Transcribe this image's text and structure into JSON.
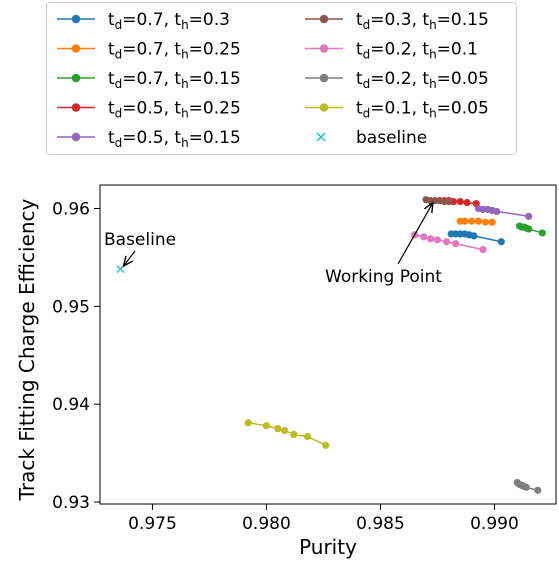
{
  "chart_data": {
    "type": "line",
    "title": "",
    "xlabel": "Purity",
    "ylabel": "Track Fitting Charge Efficiency",
    "xlim": [
      0.9727,
      0.9927
    ],
    "ylim": [
      0.9298,
      0.9624
    ],
    "x_ticks": [
      0.975,
      0.98,
      0.985,
      0.99
    ],
    "x_tick_labels": [
      "0.975",
      "0.980",
      "0.985",
      "0.990"
    ],
    "y_ticks": [
      0.93,
      0.94,
      0.95,
      0.96
    ],
    "y_tick_labels": [
      "0.93",
      "0.94",
      "0.95",
      "0.96"
    ],
    "grid": false,
    "legend_placement": "top, outside plot, two columns",
    "series": [
      {
        "name": "0.7|0.3",
        "td": "0.7",
        "th": "0.3",
        "color": "#1f77b4",
        "x": [
          0.9881,
          0.9883,
          0.9885,
          0.9887,
          0.9889,
          0.9891,
          0.9903
        ],
        "y": [
          0.9574,
          0.9574,
          0.9574,
          0.9574,
          0.9573,
          0.9572,
          0.9566
        ]
      },
      {
        "name": "0.7|0.25",
        "td": "0.7",
        "th": "0.25",
        "color": "#ff7f0e",
        "x": [
          0.9885,
          0.9887,
          0.989,
          0.9893,
          0.9896,
          0.9899
        ],
        "y": [
          0.9587,
          0.9587,
          0.9587,
          0.9587,
          0.9586,
          0.9586
        ]
      },
      {
        "name": "0.7|0.15",
        "td": "0.7",
        "th": "0.15",
        "color": "#2ca02c",
        "x": [
          0.9911,
          0.9912,
          0.9913,
          0.9914,
          0.9915,
          0.9921
        ],
        "y": [
          0.9582,
          0.9581,
          0.9581,
          0.958,
          0.9579,
          0.9575
        ]
      },
      {
        "name": "0.5|0.25",
        "td": "0.5",
        "th": "0.25",
        "color": "#d62728",
        "x": [
          0.9878,
          0.988,
          0.9882,
          0.9885,
          0.9888,
          0.9892
        ],
        "y": [
          0.9608,
          0.9608,
          0.9607,
          0.9607,
          0.9606,
          0.9605
        ]
      },
      {
        "name": "0.5|0.15",
        "td": "0.5",
        "th": "0.15",
        "color": "#9467bd",
        "x": [
          0.9893,
          0.9895,
          0.9897,
          0.9899,
          0.9901,
          0.9915
        ],
        "y": [
          0.96,
          0.9599,
          0.9599,
          0.9598,
          0.9597,
          0.9592
        ]
      },
      {
        "name": "0.3|0.15",
        "td": "0.3",
        "th": "0.15",
        "color": "#8c564b",
        "x": [
          0.987,
          0.9872,
          0.9874,
          0.9876,
          0.9878,
          0.988
        ],
        "y": [
          0.9609,
          0.9608,
          0.9608,
          0.9608,
          0.9607,
          0.9607
        ]
      },
      {
        "name": "0.2|0.1",
        "td": "0.2",
        "th": "0.1",
        "color": "#e377c2",
        "x": [
          0.9865,
          0.9869,
          0.9872,
          0.9875,
          0.9879,
          0.9883,
          0.9895
        ],
        "y": [
          0.9573,
          0.9571,
          0.9569,
          0.9568,
          0.9566,
          0.9564,
          0.9558
        ]
      },
      {
        "name": "0.2|0.05",
        "td": "0.2",
        "th": "0.05",
        "color": "#7f7f7f",
        "x": [
          0.991,
          0.9911,
          0.9912,
          0.9913,
          0.9914,
          0.9919
        ],
        "y": [
          0.932,
          0.9318,
          0.9317,
          0.9316,
          0.9315,
          0.9312
        ]
      },
      {
        "name": "0.1|0.05",
        "td": "0.1",
        "th": "0.05",
        "color": "#bcbd22",
        "x": [
          0.9792,
          0.98,
          0.9805,
          0.9808,
          0.9812,
          0.9818,
          0.9826
        ],
        "y": [
          0.9381,
          0.9378,
          0.9375,
          0.9373,
          0.9369,
          0.9367,
          0.9358
        ]
      }
    ],
    "baseline": {
      "name": "baseline",
      "color": "#17becf",
      "x": 0.9736,
      "y": 0.9538
    },
    "annotations": [
      {
        "text": "Baseline",
        "x": 0.9736,
        "y": 0.9538
      },
      {
        "text": "Working Point",
        "x": 0.9873,
        "y": 0.9608
      }
    ]
  }
}
